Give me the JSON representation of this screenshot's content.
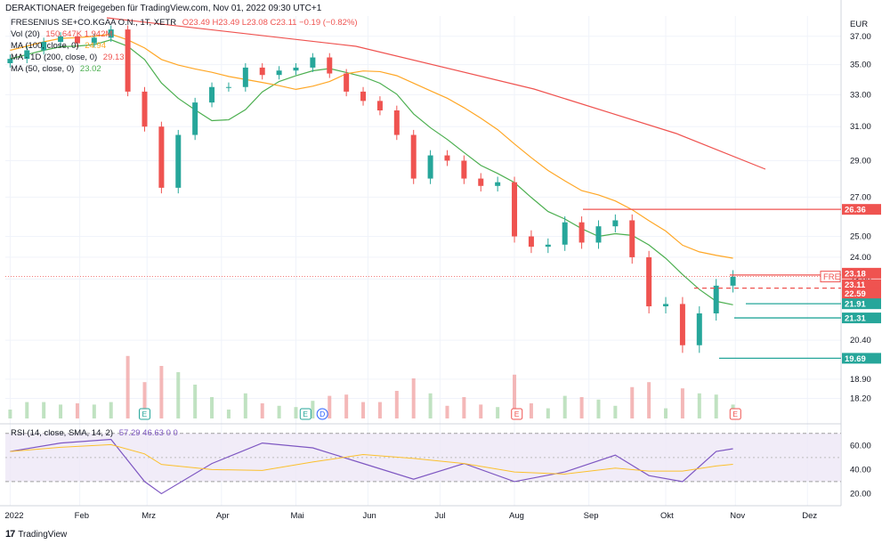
{
  "header": {
    "publisher": "DERAKTIONAER freigegeben für TradingView.com, Nov 01, 2022 09:30 UTC+1"
  },
  "legend": {
    "symbol": "FRESENIUS SE+CO.KGAA O.N., 1T, XETR",
    "ohlc": "O23.49 H23.49 L23.08 C23.11 −0.19 (−0.82%)",
    "vol_label": "Vol (20)",
    "vol_values": "150.647K  1.942M",
    "ma100_label": "MA (100, close, 0)",
    "ma100_value": "24.94",
    "ma1d_label": "MA · 1D (200, close, 0)",
    "ma1d_value": "29.13",
    "ma50_label": "MA (50, close, 0)",
    "ma50_value": "23.02",
    "rsi_label": "RSI (14, close, SMA, 14, 2)",
    "rsi_values": "57.29  46.63  0  0"
  },
  "footer": {
    "brand": "TradingView"
  },
  "colors": {
    "up": "#26a69a",
    "down": "#ef5350",
    "ma50": "#4caf50",
    "ma100": "#ffa726",
    "ma200": "#ef5350",
    "rsi": "#7e57c2",
    "rsi_ma": "#fbc02d",
    "rsi_band": "#ede7f6",
    "grid": "#f0f3fa",
    "axis_text": "#131722"
  },
  "chart_data": {
    "type": "line",
    "title": "FRESENIUS SE+CO.KGAA O.N., 1T, XETR",
    "currency": "EUR",
    "price_axis": {
      "ticks": [
        37.0,
        35.0,
        33.0,
        31.0,
        29.0,
        27.0,
        25.0,
        24.0,
        23.0,
        20.4,
        18.9,
        18.2
      ],
      "scale": "log"
    },
    "time_axis": {
      "labels": [
        "2022",
        "Feb",
        "Mrz",
        "Apr",
        "Mai",
        "Jun",
        "Jul",
        "Aug",
        "Sep",
        "Okt",
        "Nov",
        "Dez"
      ]
    },
    "price_series": {
      "name": "FRE",
      "points": [
        [
          "2022-01-03",
          35.4
        ],
        [
          "2022-01-10",
          36.0
        ],
        [
          "2022-01-17",
          36.6
        ],
        [
          "2022-01-24",
          37.0
        ],
        [
          "2022-01-31",
          36.5
        ],
        [
          "2022-02-07",
          36.9
        ],
        [
          "2022-02-14",
          37.5
        ],
        [
          "2022-02-21",
          33.2
        ],
        [
          "2022-02-28",
          31.0
        ],
        [
          "2022-03-07",
          27.5
        ],
        [
          "2022-03-14",
          30.5
        ],
        [
          "2022-03-21",
          32.5
        ],
        [
          "2022-03-28",
          33.5
        ],
        [
          "2022-04-04",
          33.5
        ],
        [
          "2022-04-11",
          34.8
        ],
        [
          "2022-04-18",
          34.3
        ],
        [
          "2022-04-25",
          34.6
        ],
        [
          "2022-05-02",
          34.8
        ],
        [
          "2022-05-09",
          35.5
        ],
        [
          "2022-05-16",
          34.4
        ],
        [
          "2022-05-23",
          33.2
        ],
        [
          "2022-05-30",
          32.6
        ],
        [
          "2022-06-06",
          32.0
        ],
        [
          "2022-06-13",
          30.5
        ],
        [
          "2022-06-20",
          28.0
        ],
        [
          "2022-06-27",
          29.3
        ],
        [
          "2022-07-04",
          29.0
        ],
        [
          "2022-07-11",
          28.0
        ],
        [
          "2022-07-18",
          27.6
        ],
        [
          "2022-07-25",
          27.8
        ],
        [
          "2022-08-01",
          25.0
        ],
        [
          "2022-08-08",
          24.5
        ],
        [
          "2022-08-15",
          24.6
        ],
        [
          "2022-08-22",
          25.7
        ],
        [
          "2022-08-29",
          24.7
        ],
        [
          "2022-09-05",
          25.5
        ],
        [
          "2022-09-12",
          25.8
        ],
        [
          "2022-09-19",
          24.0
        ],
        [
          "2022-09-26",
          21.8
        ],
        [
          "2022-10-03",
          21.9
        ],
        [
          "2022-10-10",
          20.2
        ],
        [
          "2022-10-17",
          21.5
        ],
        [
          "2022-10-24",
          22.7
        ],
        [
          "2022-10-31",
          23.1
        ]
      ]
    },
    "ma_series": [
      {
        "name": "MA (50, close, 0)",
        "value": 23.02
      },
      {
        "name": "MA (100, close, 0)",
        "value": 24.94
      },
      {
        "name": "MA · 1D (200, close, 0)",
        "value": 29.13
      }
    ],
    "price_labels": [
      {
        "value": "26.36",
        "color": "#ef5350"
      },
      {
        "value": "23.18",
        "color": "#ef5350"
      },
      {
        "value": "23.11",
        "color": "#ef5350"
      },
      {
        "value": "09:14:38",
        "color": "#ef5350"
      },
      {
        "value": "22.59",
        "color": "#ef5350"
      },
      {
        "value": "21.91",
        "color": "#26a69a"
      },
      {
        "value": "21.31",
        "color": "#26a69a"
      },
      {
        "value": "19.69",
        "color": "#26a69a"
      }
    ],
    "last_price_tag": "FRE",
    "event_markers": [
      {
        "date": "2022-02-28",
        "letter": "E"
      },
      {
        "date": "2022-05-06",
        "letter": "E"
      },
      {
        "date": "2022-05-13",
        "letter": "D"
      },
      {
        "date": "2022-08-02",
        "letter": "E"
      },
      {
        "date": "2022-11-01",
        "letter": "E"
      }
    ],
    "rsi": {
      "ticks": [
        60.0,
        40.0,
        20.0
      ],
      "band": [
        30,
        70
      ],
      "points": [
        [
          "2022-01-03",
          55
        ],
        [
          "2022-01-24",
          62
        ],
        [
          "2022-02-14",
          65
        ],
        [
          "2022-02-28",
          30
        ],
        [
          "2022-03-07",
          20
        ],
        [
          "2022-03-28",
          45
        ],
        [
          "2022-04-18",
          62
        ],
        [
          "2022-05-09",
          58
        ],
        [
          "2022-05-30",
          45
        ],
        [
          "2022-06-20",
          32
        ],
        [
          "2022-07-11",
          45
        ],
        [
          "2022-08-01",
          30
        ],
        [
          "2022-08-22",
          38
        ],
        [
          "2022-09-12",
          52
        ],
        [
          "2022-09-26",
          35
        ],
        [
          "2022-10-10",
          30
        ],
        [
          "2022-10-24",
          55
        ],
        [
          "2022-10-31",
          57.29
        ]
      ]
    }
  }
}
